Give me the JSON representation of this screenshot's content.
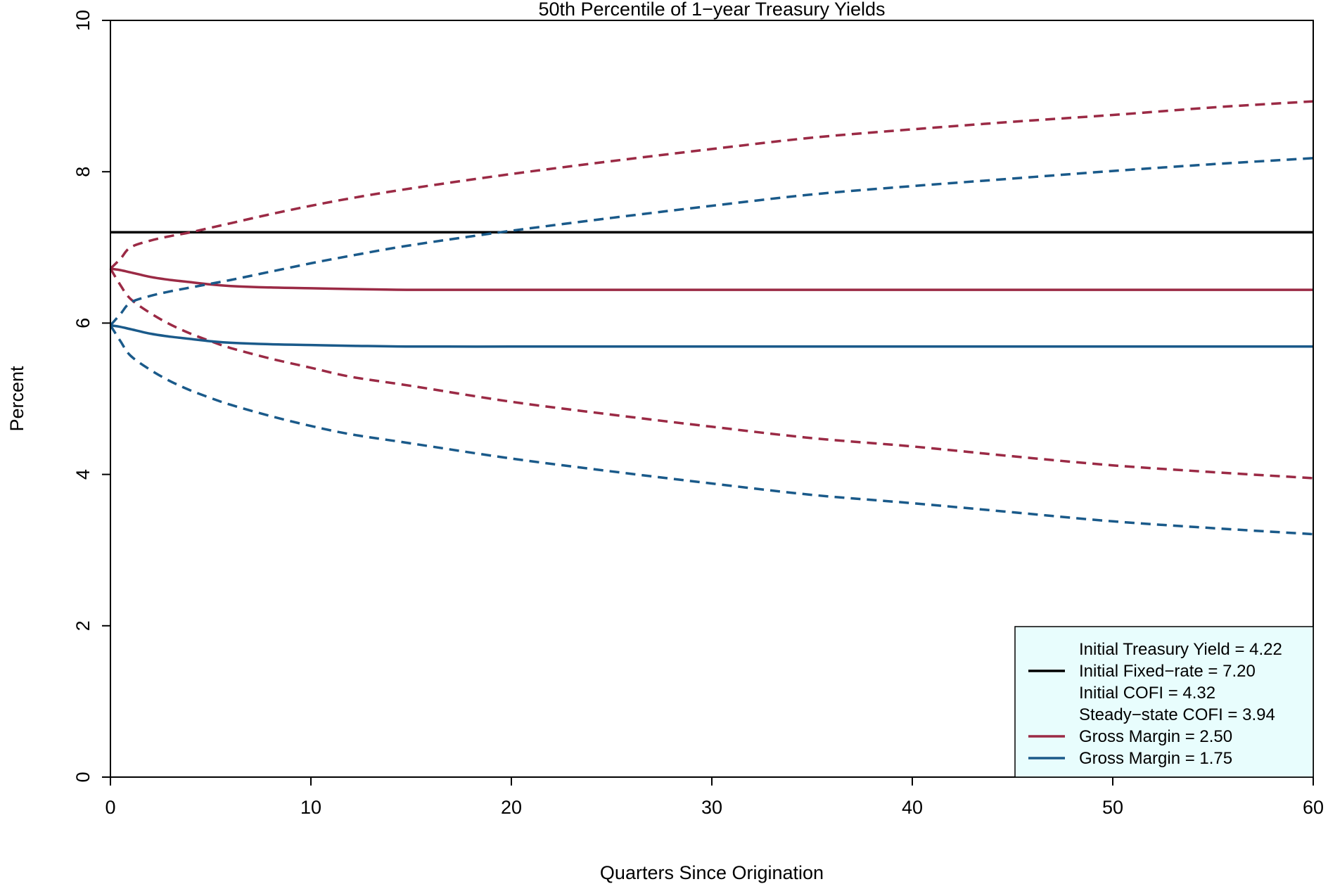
{
  "chart_data": {
    "type": "line",
    "title": "50th Percentile of 1−year Treasury Yields",
    "xlabel": "Quarters Since Origination",
    "ylabel": "Percent",
    "xlim": [
      0,
      60
    ],
    "ylim": [
      0,
      10
    ],
    "x_ticks": [
      0,
      10,
      20,
      30,
      40,
      50,
      60
    ],
    "y_ticks": [
      0,
      2,
      4,
      6,
      8,
      10
    ],
    "grid": false,
    "legend_position": "bottom-right",
    "legend_background": "#e8fdfd",
    "legend": [
      {
        "text": "Initial Treasury Yield = 4.22",
        "color": null
      },
      {
        "text": "Initial Fixed−rate = 7.20",
        "color": "#000000"
      },
      {
        "text": "Initial COFI = 4.32",
        "color": null
      },
      {
        "text": "Steady−state COFI = 3.94",
        "color": null
      },
      {
        "text": "Gross Margin = 2.50",
        "color": "#9b2a45"
      },
      {
        "text": "Gross Margin = 1.75",
        "color": "#1a5a8a"
      }
    ],
    "x": [
      0,
      0.5,
      1,
      2,
      3,
      4,
      5,
      6,
      8,
      10,
      12,
      15,
      20,
      25,
      30,
      35,
      40,
      45,
      50,
      55,
      60
    ],
    "series": [
      {
        "name": "Initial Fixed−rate = 7.20",
        "color": "#000000",
        "style": "solid",
        "values": [
          7.2,
          7.2,
          7.2,
          7.2,
          7.2,
          7.2,
          7.2,
          7.2,
          7.2,
          7.2,
          7.2,
          7.2,
          7.2,
          7.2,
          7.2,
          7.2,
          7.2,
          7.2,
          7.2,
          7.2,
          7.2
        ]
      },
      {
        "name": "Gross Margin = 2.50",
        "color": "#9b2a45",
        "style": "solid",
        "values": [
          6.72,
          6.7,
          6.67,
          6.61,
          6.57,
          6.54,
          6.51,
          6.49,
          6.47,
          6.46,
          6.45,
          6.44,
          6.44,
          6.44,
          6.44,
          6.44,
          6.44,
          6.44,
          6.44,
          6.44,
          6.44
        ]
      },
      {
        "color": "#9b2a45",
        "style": "dashed",
        "values": [
          6.72,
          6.85,
          7.0,
          7.09,
          7.15,
          7.2,
          7.26,
          7.32,
          7.44,
          7.55,
          7.65,
          7.78,
          7.97,
          8.14,
          8.3,
          8.45,
          8.56,
          8.66,
          8.75,
          8.85,
          8.93
        ]
      },
      {
        "color": "#9b2a45",
        "style": "dashed",
        "values": [
          6.72,
          6.5,
          6.32,
          6.13,
          5.98,
          5.86,
          5.76,
          5.67,
          5.53,
          5.41,
          5.29,
          5.17,
          4.96,
          4.79,
          4.63,
          4.48,
          4.37,
          4.24,
          4.12,
          4.03,
          3.95
        ]
      },
      {
        "name": "Gross Margin = 1.75",
        "color": "#1a5a8a",
        "style": "solid",
        "values": [
          5.97,
          5.95,
          5.92,
          5.86,
          5.82,
          5.79,
          5.76,
          5.74,
          5.72,
          5.71,
          5.7,
          5.69,
          5.69,
          5.69,
          5.69,
          5.69,
          5.69,
          5.69,
          5.69,
          5.69,
          5.69
        ]
      },
      {
        "color": "#1a5a8a",
        "style": "dashed",
        "values": [
          5.97,
          6.12,
          6.27,
          6.36,
          6.42,
          6.47,
          6.52,
          6.57,
          6.68,
          6.79,
          6.89,
          7.03,
          7.22,
          7.39,
          7.55,
          7.7,
          7.81,
          7.91,
          8.01,
          8.1,
          8.18
        ]
      },
      {
        "color": "#1a5a8a",
        "style": "dashed",
        "values": [
          5.97,
          5.76,
          5.57,
          5.38,
          5.23,
          5.11,
          5.01,
          4.92,
          4.77,
          4.64,
          4.53,
          4.41,
          4.21,
          4.04,
          3.88,
          3.73,
          3.62,
          3.5,
          3.38,
          3.29,
          3.21
        ]
      }
    ]
  }
}
